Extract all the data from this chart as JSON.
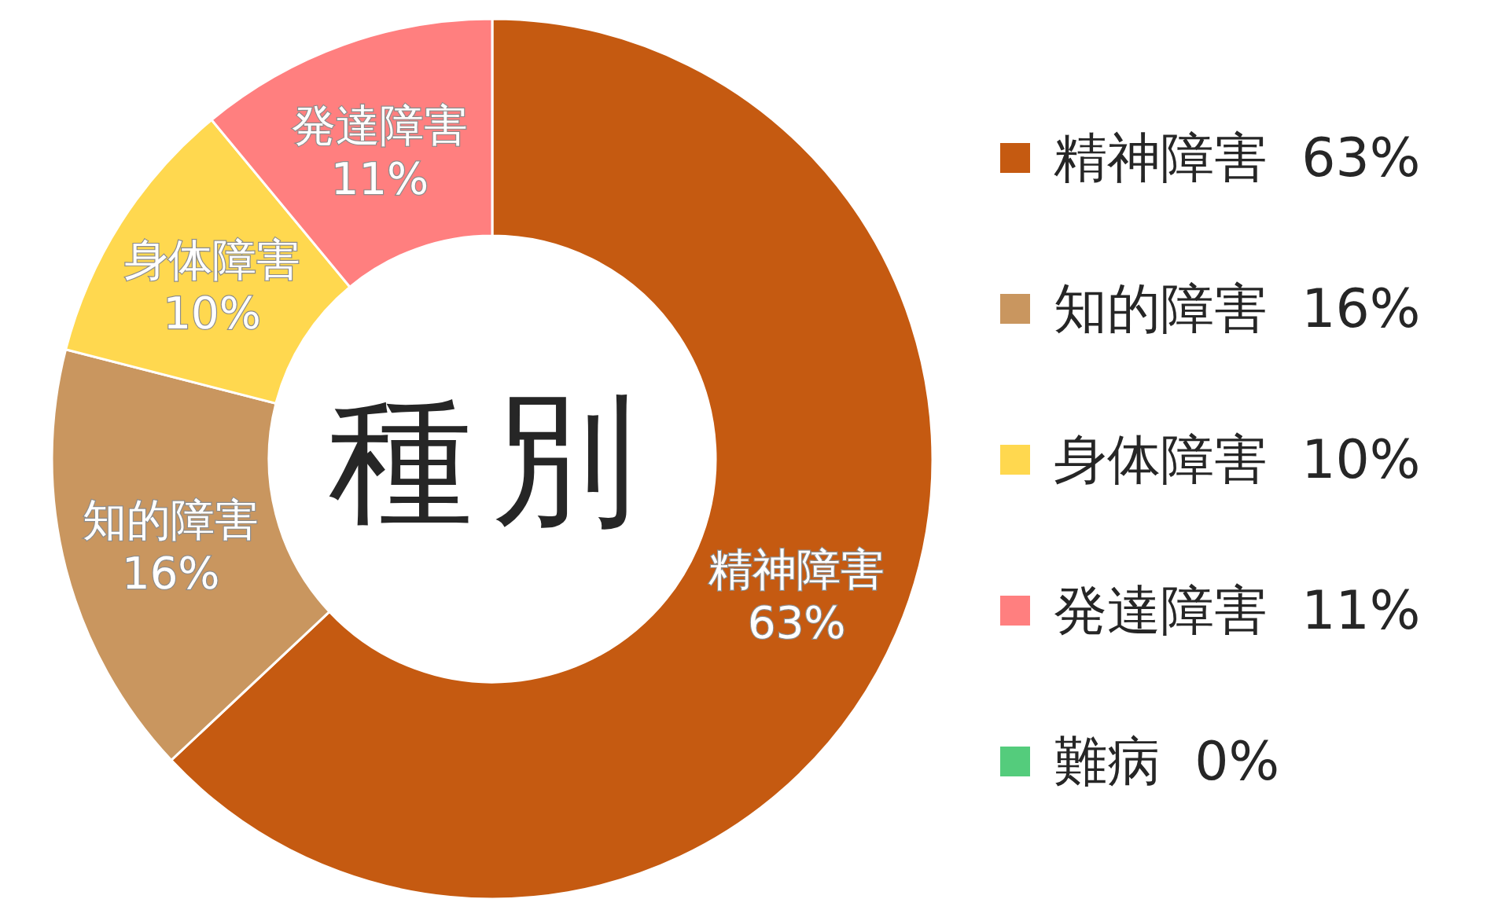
{
  "chart_data": {
    "type": "donut",
    "title": "種別",
    "categories": [
      "精神障害",
      "知的障害",
      "身体障害",
      "発達障害",
      "難病"
    ],
    "values": [
      63,
      16,
      10,
      11,
      0
    ],
    "value_labels": [
      "63%",
      "16%",
      "10%",
      "11%",
      "0%"
    ],
    "colors": [
      "#c55a11",
      "#c9965f",
      "#ffd84f",
      "#ff7f7f",
      "#54cc7c"
    ],
    "data_labels": true,
    "legend": "right"
  }
}
